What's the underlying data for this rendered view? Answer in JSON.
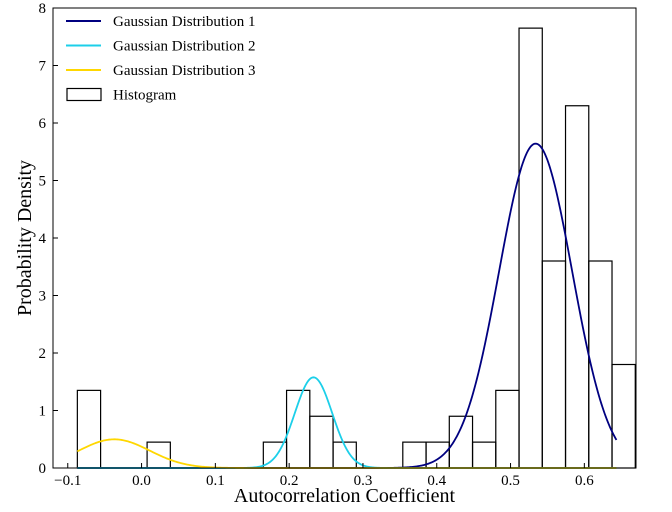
{
  "chart_data": {
    "type": "histogram+line",
    "title": "",
    "xlabel": "Autocorrelation Coefficient",
    "ylabel": "Probability Density",
    "xlim": [
      -0.12,
      0.67
    ],
    "ylim": [
      0,
      8
    ],
    "xticks": [
      -0.1,
      0.0,
      0.1,
      0.2,
      0.3,
      0.4,
      0.5,
      0.6
    ],
    "xtick_labels": [
      "−0.1",
      "0.0",
      "0.1",
      "0.2",
      "0.3",
      "0.4",
      "0.5",
      "0.6"
    ],
    "yticks": [
      0,
      1,
      2,
      3,
      4,
      5,
      6,
      7,
      8
    ],
    "ytick_labels": [
      "0",
      "1",
      "2",
      "3",
      "4",
      "5",
      "6",
      "7",
      "8"
    ],
    "grid": false,
    "legend_position": "top-left",
    "histogram": {
      "name": "Histogram",
      "bin_edges": [
        -0.087,
        -0.0555,
        -0.024,
        0.0075,
        0.039,
        0.0705,
        0.102,
        0.1335,
        0.165,
        0.1965,
        0.228,
        0.2595,
        0.291,
        0.3225,
        0.354,
        0.3855,
        0.417,
        0.4485,
        0.48,
        0.5115,
        0.543,
        0.5745,
        0.606,
        0.6375
      ],
      "bin_widths": 0.0315,
      "densities": [
        1.35,
        0,
        0,
        0.45,
        0,
        0,
        0,
        0,
        0.45,
        1.35,
        0.9,
        0.45,
        0,
        0,
        0.45,
        0.45,
        0.9,
        0.45,
        1.35,
        7.65,
        3.6,
        6.3,
        3.6,
        1.8
      ],
      "edge_color": "#000000",
      "fill_color": "none"
    },
    "series": [
      {
        "name": "Gaussian Distribution 1",
        "color": "#000080",
        "weight": 0.7,
        "mean": 0.534,
        "std": 0.0495,
        "x_range": [
          -0.087,
          0.6435
        ]
      },
      {
        "name": "Gaussian Distribution 2",
        "color": "#1CCFE9",
        "weight": 0.1,
        "mean": 0.233,
        "std": 0.0253,
        "x_range": [
          -0.087,
          0.6435
        ]
      },
      {
        "name": "Gaussian Distribution 3",
        "color": "#FFD700",
        "weight": 0.06,
        "mean": -0.037,
        "std": 0.048,
        "x_range": [
          -0.087,
          0.6435
        ]
      }
    ]
  }
}
